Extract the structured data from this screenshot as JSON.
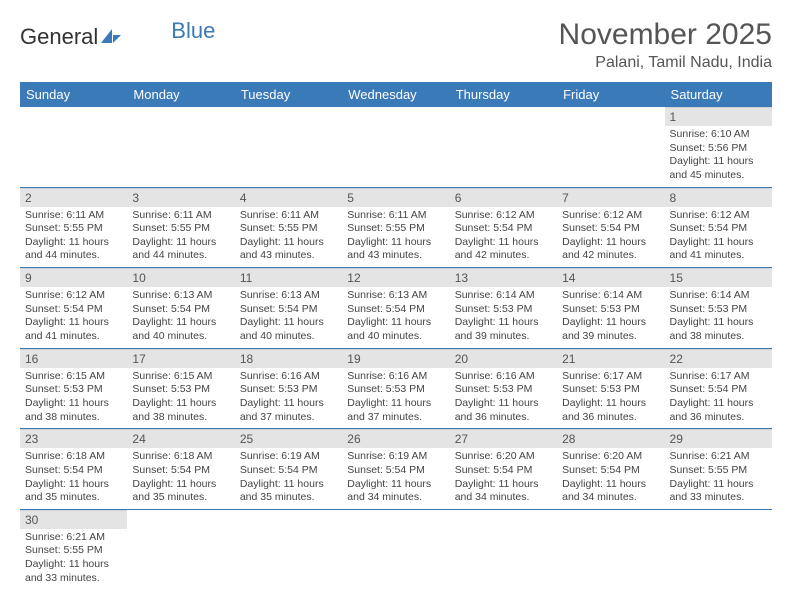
{
  "logo": {
    "text1": "General",
    "text2": "Blue"
  },
  "title": "November 2025",
  "location": "Palani, Tamil Nadu, India",
  "colors": {
    "header_bg": "#3a7ab8",
    "header_text": "#ffffff",
    "daynum_bg": "#e4e4e4",
    "cell_border": "#3a7ab8",
    "body_text": "#444444",
    "title_text": "#555555"
  },
  "weekdays": [
    "Sunday",
    "Monday",
    "Tuesday",
    "Wednesday",
    "Thursday",
    "Friday",
    "Saturday"
  ],
  "weeks": [
    [
      null,
      null,
      null,
      null,
      null,
      null,
      {
        "n": "1",
        "sunrise": "6:10 AM",
        "sunset": "5:56 PM",
        "daylight": "11 hours and 45 minutes."
      }
    ],
    [
      {
        "n": "2",
        "sunrise": "6:11 AM",
        "sunset": "5:55 PM",
        "daylight": "11 hours and 44 minutes."
      },
      {
        "n": "3",
        "sunrise": "6:11 AM",
        "sunset": "5:55 PM",
        "daylight": "11 hours and 44 minutes."
      },
      {
        "n": "4",
        "sunrise": "6:11 AM",
        "sunset": "5:55 PM",
        "daylight": "11 hours and 43 minutes."
      },
      {
        "n": "5",
        "sunrise": "6:11 AM",
        "sunset": "5:55 PM",
        "daylight": "11 hours and 43 minutes."
      },
      {
        "n": "6",
        "sunrise": "6:12 AM",
        "sunset": "5:54 PM",
        "daylight": "11 hours and 42 minutes."
      },
      {
        "n": "7",
        "sunrise": "6:12 AM",
        "sunset": "5:54 PM",
        "daylight": "11 hours and 42 minutes."
      },
      {
        "n": "8",
        "sunrise": "6:12 AM",
        "sunset": "5:54 PM",
        "daylight": "11 hours and 41 minutes."
      }
    ],
    [
      {
        "n": "9",
        "sunrise": "6:12 AM",
        "sunset": "5:54 PM",
        "daylight": "11 hours and 41 minutes."
      },
      {
        "n": "10",
        "sunrise": "6:13 AM",
        "sunset": "5:54 PM",
        "daylight": "11 hours and 40 minutes."
      },
      {
        "n": "11",
        "sunrise": "6:13 AM",
        "sunset": "5:54 PM",
        "daylight": "11 hours and 40 minutes."
      },
      {
        "n": "12",
        "sunrise": "6:13 AM",
        "sunset": "5:54 PM",
        "daylight": "11 hours and 40 minutes."
      },
      {
        "n": "13",
        "sunrise": "6:14 AM",
        "sunset": "5:53 PM",
        "daylight": "11 hours and 39 minutes."
      },
      {
        "n": "14",
        "sunrise": "6:14 AM",
        "sunset": "5:53 PM",
        "daylight": "11 hours and 39 minutes."
      },
      {
        "n": "15",
        "sunrise": "6:14 AM",
        "sunset": "5:53 PM",
        "daylight": "11 hours and 38 minutes."
      }
    ],
    [
      {
        "n": "16",
        "sunrise": "6:15 AM",
        "sunset": "5:53 PM",
        "daylight": "11 hours and 38 minutes."
      },
      {
        "n": "17",
        "sunrise": "6:15 AM",
        "sunset": "5:53 PM",
        "daylight": "11 hours and 38 minutes."
      },
      {
        "n": "18",
        "sunrise": "6:16 AM",
        "sunset": "5:53 PM",
        "daylight": "11 hours and 37 minutes."
      },
      {
        "n": "19",
        "sunrise": "6:16 AM",
        "sunset": "5:53 PM",
        "daylight": "11 hours and 37 minutes."
      },
      {
        "n": "20",
        "sunrise": "6:16 AM",
        "sunset": "5:53 PM",
        "daylight": "11 hours and 36 minutes."
      },
      {
        "n": "21",
        "sunrise": "6:17 AM",
        "sunset": "5:53 PM",
        "daylight": "11 hours and 36 minutes."
      },
      {
        "n": "22",
        "sunrise": "6:17 AM",
        "sunset": "5:54 PM",
        "daylight": "11 hours and 36 minutes."
      }
    ],
    [
      {
        "n": "23",
        "sunrise": "6:18 AM",
        "sunset": "5:54 PM",
        "daylight": "11 hours and 35 minutes."
      },
      {
        "n": "24",
        "sunrise": "6:18 AM",
        "sunset": "5:54 PM",
        "daylight": "11 hours and 35 minutes."
      },
      {
        "n": "25",
        "sunrise": "6:19 AM",
        "sunset": "5:54 PM",
        "daylight": "11 hours and 35 minutes."
      },
      {
        "n": "26",
        "sunrise": "6:19 AM",
        "sunset": "5:54 PM",
        "daylight": "11 hours and 34 minutes."
      },
      {
        "n": "27",
        "sunrise": "6:20 AM",
        "sunset": "5:54 PM",
        "daylight": "11 hours and 34 minutes."
      },
      {
        "n": "28",
        "sunrise": "6:20 AM",
        "sunset": "5:54 PM",
        "daylight": "11 hours and 34 minutes."
      },
      {
        "n": "29",
        "sunrise": "6:21 AM",
        "sunset": "5:55 PM",
        "daylight": "11 hours and 33 minutes."
      }
    ],
    [
      {
        "n": "30",
        "sunrise": "6:21 AM",
        "sunset": "5:55 PM",
        "daylight": "11 hours and 33 minutes."
      },
      null,
      null,
      null,
      null,
      null,
      null
    ]
  ],
  "labels": {
    "sunrise_prefix": "Sunrise: ",
    "sunset_prefix": "Sunset: ",
    "daylight_prefix": "Daylight: "
  }
}
